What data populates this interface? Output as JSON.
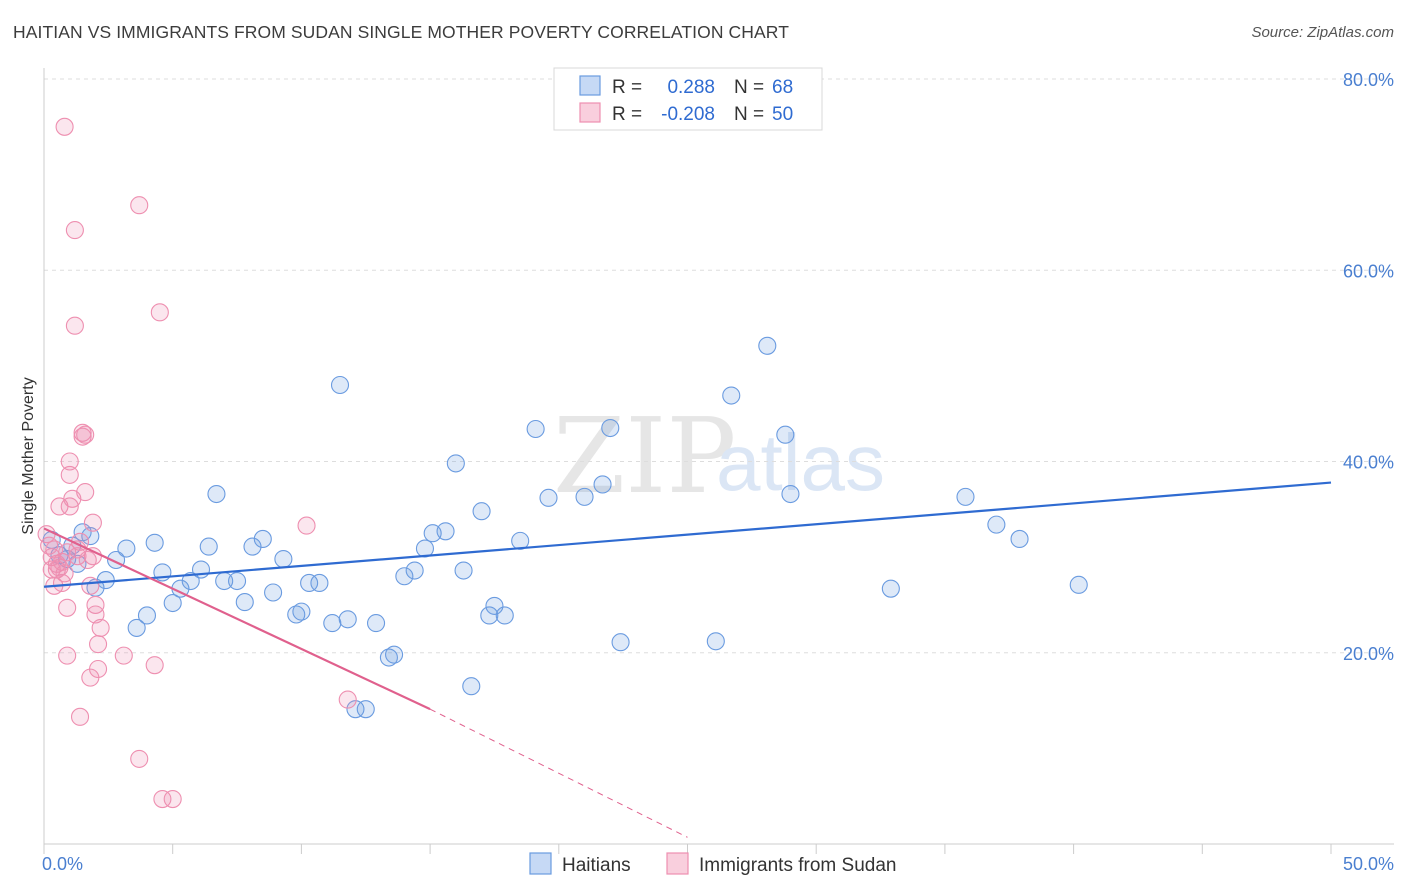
{
  "header": {
    "title": "HAITIAN VS IMMIGRANTS FROM SUDAN SINGLE MOTHER POVERTY CORRELATION CHART",
    "source": "Source: ZipAtlas.com"
  },
  "watermark": {
    "zip": "ZIP",
    "atlas": "atlas"
  },
  "colors": {
    "blue": "#6a9be0",
    "blue_line": "#2f6bd1",
    "pink": "#ee8fb0",
    "pink_line": "#e0608d",
    "grid": "#dddddd",
    "axis_text": "#4a7fd0"
  },
  "legend_top": {
    "rows": [
      {
        "r_label": "R =",
        "r_value": "0.288",
        "n_label": "N =",
        "n_value": "68"
      },
      {
        "r_label": "R =",
        "r_value": "-0.208",
        "n_label": "N =",
        "n_value": "50"
      }
    ]
  },
  "legend_bottom": {
    "items": [
      "Haitians",
      "Immigrants from Sudan"
    ]
  },
  "chart_data": {
    "type": "scatter",
    "title": "HAITIAN VS IMMIGRANTS FROM SUDAN SINGLE MOTHER POVERTY CORRELATION CHART",
    "xlabel": "",
    "ylabel": "Single Mother Poverty",
    "xlim": [
      0,
      50
    ],
    "ylim": [
      0,
      80
    ],
    "x_tick_labels": [
      "0.0%",
      "50.0%"
    ],
    "y_ticks": [
      20,
      40,
      60,
      80
    ],
    "y_tick_labels": [
      "20.0%",
      "40.0%",
      "60.0%",
      "80.0%"
    ],
    "grid": true,
    "series": [
      {
        "name": "Haitians",
        "color": "#6a9be0",
        "r": 0.288,
        "n": 68,
        "trend": {
          "x0": 0,
          "y0": 26.9,
          "x1": 50,
          "y1": 37.8,
          "dashed_to": null
        },
        "points": [
          [
            0.3,
            31.8
          ],
          [
            0.6,
            30.2
          ],
          [
            0.9,
            29.8
          ],
          [
            1.1,
            31.2
          ],
          [
            1.3,
            29.3
          ],
          [
            1.5,
            32.6
          ],
          [
            1.8,
            32.2
          ],
          [
            2.0,
            26.8
          ],
          [
            2.4,
            27.6
          ],
          [
            2.8,
            29.7
          ],
          [
            3.2,
            30.9
          ],
          [
            3.6,
            22.6
          ],
          [
            4.0,
            23.9
          ],
          [
            4.3,
            31.5
          ],
          [
            4.6,
            28.4
          ],
          [
            5.0,
            25.2
          ],
          [
            5.3,
            26.7
          ],
          [
            5.7,
            27.5
          ],
          [
            6.1,
            28.7
          ],
          [
            6.4,
            31.1
          ],
          [
            6.7,
            36.6
          ],
          [
            7.0,
            27.5
          ],
          [
            7.5,
            27.5
          ],
          [
            7.8,
            25.3
          ],
          [
            8.1,
            31.1
          ],
          [
            8.5,
            31.9
          ],
          [
            8.9,
            26.3
          ],
          [
            9.3,
            29.8
          ],
          [
            9.8,
            24.0
          ],
          [
            10.0,
            24.3
          ],
          [
            10.3,
            27.3
          ],
          [
            10.7,
            27.3
          ],
          [
            11.2,
            23.1
          ],
          [
            11.5,
            48.0
          ],
          [
            11.8,
            23.5
          ],
          [
            12.1,
            14.1
          ],
          [
            12.5,
            14.1
          ],
          [
            12.9,
            23.1
          ],
          [
            13.4,
            19.5
          ],
          [
            13.6,
            19.8
          ],
          [
            14.0,
            28.0
          ],
          [
            14.4,
            28.6
          ],
          [
            14.8,
            30.9
          ],
          [
            15.1,
            32.5
          ],
          [
            15.6,
            32.7
          ],
          [
            16.0,
            39.8
          ],
          [
            16.3,
            28.6
          ],
          [
            16.6,
            16.5
          ],
          [
            17.0,
            34.8
          ],
          [
            17.3,
            23.9
          ],
          [
            17.5,
            24.9
          ],
          [
            17.9,
            23.9
          ],
          [
            18.5,
            31.7
          ],
          [
            19.1,
            43.4
          ],
          [
            19.6,
            36.2
          ],
          [
            21.0,
            36.3
          ],
          [
            21.7,
            37.6
          ],
          [
            22.0,
            43.5
          ],
          [
            22.4,
            21.1
          ],
          [
            26.1,
            21.2
          ],
          [
            26.7,
            46.9
          ],
          [
            28.1,
            52.1
          ],
          [
            28.8,
            42.8
          ],
          [
            29.0,
            36.6
          ],
          [
            32.9,
            26.7
          ],
          [
            35.8,
            36.3
          ],
          [
            37.0,
            33.4
          ],
          [
            37.9,
            31.9
          ],
          [
            40.2,
            27.1
          ]
        ]
      },
      {
        "name": "Immigrants from Sudan",
        "color": "#ee8fb0",
        "r": -0.208,
        "n": 50,
        "trend": {
          "x0": 0,
          "y0": 33.0,
          "x1": 15,
          "y1": 14.1,
          "dashed_to": [
            25,
            0.7
          ]
        },
        "points": [
          [
            0.1,
            32.4
          ],
          [
            0.2,
            31.2
          ],
          [
            0.3,
            30.0
          ],
          [
            0.3,
            28.7
          ],
          [
            0.4,
            27.0
          ],
          [
            0.5,
            29.3
          ],
          [
            0.5,
            28.7
          ],
          [
            0.6,
            28.9
          ],
          [
            0.6,
            35.3
          ],
          [
            0.7,
            29.5
          ],
          [
            0.7,
            27.3
          ],
          [
            0.8,
            28.3
          ],
          [
            0.8,
            75.0
          ],
          [
            0.9,
            30.5
          ],
          [
            0.9,
            24.7
          ],
          [
            0.9,
            19.7
          ],
          [
            1.0,
            40.0
          ],
          [
            1.0,
            38.6
          ],
          [
            1.0,
            35.3
          ],
          [
            1.1,
            36.1
          ],
          [
            1.2,
            64.2
          ],
          [
            1.2,
            54.2
          ],
          [
            1.3,
            30.1
          ],
          [
            1.3,
            30.8
          ],
          [
            1.4,
            31.6
          ],
          [
            1.4,
            13.3
          ],
          [
            1.5,
            43.0
          ],
          [
            1.5,
            42.6
          ],
          [
            1.6,
            36.8
          ],
          [
            1.7,
            29.7
          ],
          [
            1.8,
            27.0
          ],
          [
            1.8,
            17.4
          ],
          [
            1.9,
            33.6
          ],
          [
            1.9,
            30.1
          ],
          [
            2.0,
            25.0
          ],
          [
            2.0,
            24.0
          ],
          [
            2.1,
            20.9
          ],
          [
            2.1,
            18.3
          ],
          [
            2.2,
            22.6
          ],
          [
            3.1,
            19.7
          ],
          [
            3.7,
            8.9
          ],
          [
            3.7,
            66.8
          ],
          [
            4.3,
            18.7
          ],
          [
            4.5,
            55.6
          ],
          [
            4.6,
            4.7
          ],
          [
            5.0,
            4.7
          ],
          [
            10.2,
            33.3
          ],
          [
            11.8,
            15.1
          ],
          [
            0.4,
            30.8
          ],
          [
            1.6,
            42.8
          ]
        ]
      }
    ]
  }
}
